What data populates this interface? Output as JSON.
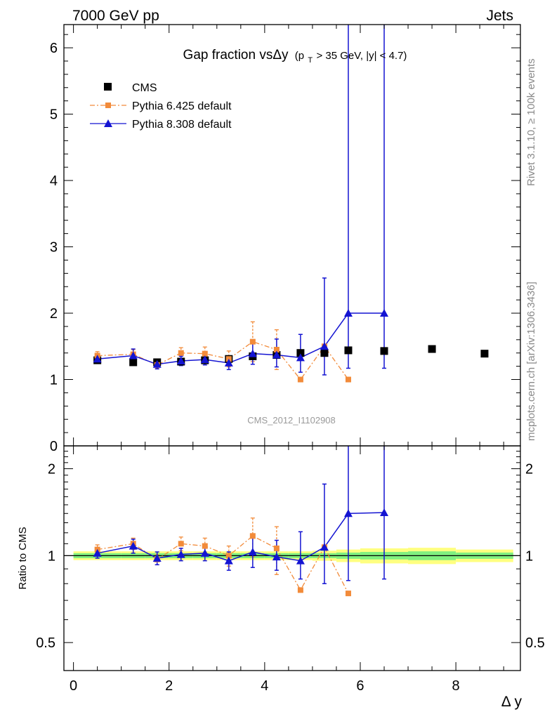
{
  "header": {
    "left": "7000 GeV pp",
    "right": "Jets"
  },
  "side_labels": {
    "rivet": "Rivet 3.1.10, ≥ 100k events",
    "mcplots": "mcplots.cern.ch [arXiv:1306.3436]"
  },
  "colors": {
    "cms": "#000000",
    "pythia6": "#f28b3a",
    "pythia8": "#1414d2",
    "band_inner": "#80f080",
    "band_outer": "#ffff80",
    "ratio_line": "#000000"
  },
  "chart_data": [
    {
      "type": "scatter",
      "panel": "main",
      "title_main": "Gap fraction vsΔy",
      "title_cut_a": "(p",
      "title_cut_sub": "T",
      "title_cut_b": " > 35 GeV, |y| < 4.7)",
      "watermark": "CMS_2012_I1102908",
      "xlim": [
        -0.2,
        9.35
      ],
      "ylim": [
        0,
        6.35
      ],
      "y_ticks": [
        0,
        1,
        2,
        3,
        4,
        5,
        6
      ],
      "legend_position": "top-left",
      "series": [
        {
          "name": "CMS",
          "marker": "square",
          "x": [
            0.5,
            1.25,
            1.75,
            2.25,
            2.75,
            3.25,
            3.75,
            4.25,
            4.75,
            5.25,
            5.75,
            6.5,
            7.5,
            8.6
          ],
          "y": [
            1.29,
            1.26,
            1.26,
            1.27,
            1.29,
            1.31,
            1.35,
            1.37,
            1.4,
            1.4,
            1.44,
            1.43,
            1.46,
            1.39
          ]
        },
        {
          "name": "Pythia 6.425 default",
          "marker": "square-small",
          "line": "dash-dot",
          "x": [
            0.5,
            1.25,
            1.75,
            2.25,
            2.75,
            3.25,
            3.75,
            4.25,
            4.75,
            5.25,
            5.75
          ],
          "y": [
            1.36,
            1.38,
            1.22,
            1.4,
            1.39,
            1.31,
            1.57,
            1.45,
            1.0,
            1.5,
            1.0
          ],
          "err": [
            0.06,
            0.07,
            0.05,
            0.08,
            0.1,
            0.12,
            0.3,
            0.3,
            0,
            0,
            0
          ]
        },
        {
          "name": "Pythia 8.308 default",
          "marker": "triangle",
          "line": "solid",
          "x": [
            0.5,
            1.25,
            1.75,
            2.25,
            2.75,
            3.25,
            3.75,
            4.25,
            4.75,
            5.25,
            5.75,
            6.5
          ],
          "y": [
            1.31,
            1.36,
            1.23,
            1.28,
            1.3,
            1.25,
            1.39,
            1.37,
            1.33,
            1.5,
            2.0,
            2.0
          ],
          "err": [
            0.05,
            0.1,
            0.07,
            0.07,
            0.08,
            0.1,
            0.16,
            0.24,
            0.35,
            1.03,
            6.35,
            6.35
          ],
          "err_low": [
            0.05,
            0.1,
            0.07,
            0.07,
            0.08,
            0.1,
            0.16,
            0.18,
            0.22,
            0.43,
            0.83,
            0.83
          ]
        }
      ]
    },
    {
      "type": "scatter",
      "panel": "ratio",
      "ylabel": "Ratio to CMS",
      "xlabel": "Δ y",
      "y_scale": "log",
      "ylim": [
        0.4,
        2.4
      ],
      "y_ticks": [
        0.5,
        1,
        2
      ],
      "y_tick_labels": [
        "0.5",
        "1",
        "2"
      ],
      "x_ticks": [
        0,
        2,
        4,
        6,
        8
      ],
      "x_tick_labels": [
        "0",
        "2",
        "4",
        "6",
        "8"
      ],
      "band": {
        "edges": [
          0,
          1,
          1.5,
          2,
          2.5,
          3,
          3.5,
          4,
          4.5,
          5,
          5.5,
          6,
          7,
          8,
          9.2
        ],
        "inner": [
          0.02,
          0.02,
          0.02,
          0.02,
          0.02,
          0.02,
          0.02,
          0.02,
          0.02,
          0.02,
          0.025,
          0.03,
          0.035,
          0.025
        ],
        "outer": [
          0.035,
          0.035,
          0.035,
          0.035,
          0.035,
          0.035,
          0.035,
          0.035,
          0.035,
          0.04,
          0.05,
          0.06,
          0.065,
          0.05
        ]
      },
      "series": [
        {
          "name": "Pythia 6.425 default",
          "x": [
            0.5,
            1.25,
            1.75,
            2.25,
            2.75,
            3.25,
            3.75,
            4.25,
            4.75,
            5.25,
            5.75
          ],
          "y": [
            1.05,
            1.1,
            0.97,
            1.1,
            1.08,
            1.0,
            1.17,
            1.06,
            0.76,
            1.07,
            0.74
          ],
          "err": [
            0.04,
            0.05,
            0.04,
            0.06,
            0.07,
            0.08,
            0.18,
            0.2,
            0,
            0,
            0
          ]
        },
        {
          "name": "Pythia 8.308 default",
          "x": [
            0.5,
            1.25,
            1.75,
            2.25,
            2.75,
            3.25,
            3.75,
            4.25,
            4.75,
            5.25,
            5.75,
            6.5
          ],
          "y": [
            1.02,
            1.08,
            0.98,
            1.01,
            1.02,
            0.96,
            1.03,
            0.99,
            0.96,
            1.07,
            1.4,
            1.41
          ],
          "err_high": [
            0.04,
            0.06,
            0.05,
            0.05,
            0.06,
            0.07,
            0.12,
            0.14,
            0.25,
            0.7,
            1.6,
            1.6
          ],
          "err_low": [
            0.04,
            0.06,
            0.05,
            0.05,
            0.06,
            0.07,
            0.12,
            0.1,
            0.13,
            0.27,
            0.58,
            0.58
          ]
        }
      ]
    }
  ]
}
